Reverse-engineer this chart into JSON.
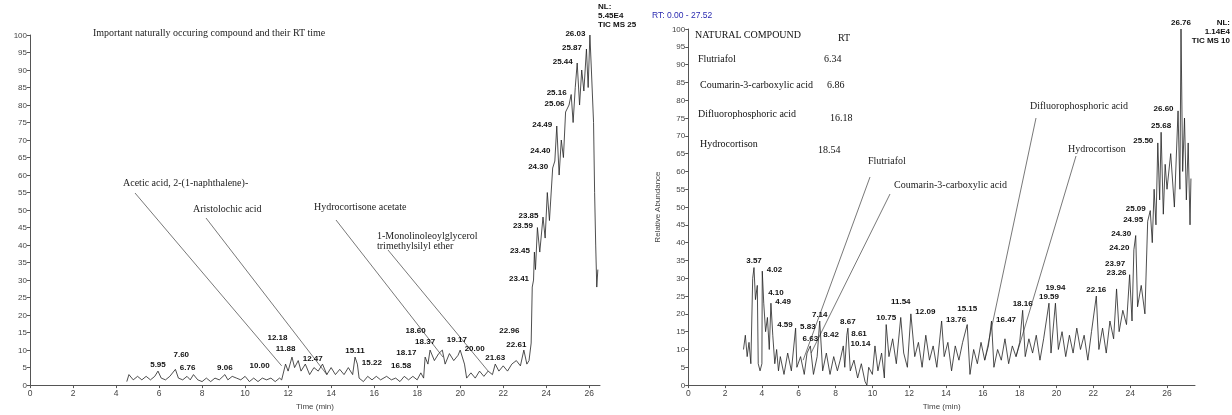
{
  "chart_data": [
    {
      "type": "line",
      "title": "Important naturally occuring compound and their RT time",
      "xlabel": "Time (min)",
      "xlim": [
        0,
        26.5
      ],
      "xticks": [
        0,
        2,
        4,
        6,
        8,
        10,
        12,
        14,
        16,
        18,
        20,
        22,
        24,
        26
      ],
      "ylim": [
        0,
        100
      ],
      "yticks": [
        0,
        5,
        10,
        15,
        20,
        25,
        30,
        35,
        40,
        45,
        50,
        55,
        60,
        65,
        70,
        75,
        80,
        85,
        90,
        95,
        100
      ],
      "series": [
        {
          "color": "#222222",
          "x": [
            4.5,
            4.6,
            4.8,
            5.0,
            5.2,
            5.4,
            5.6,
            5.8,
            5.95,
            6.1,
            6.3,
            6.5,
            6.76,
            6.9,
            7.1,
            7.3,
            7.45,
            7.6,
            7.8,
            8.0,
            8.2,
            8.4,
            8.6,
            8.8,
            9.06,
            9.2,
            9.4,
            9.6,
            9.8,
            10.0,
            10.2,
            10.4,
            10.6,
            10.8,
            11.0,
            11.2,
            11.4,
            11.6,
            11.7,
            11.88,
            12.0,
            12.18,
            12.3,
            12.47,
            12.6,
            12.8,
            13.0,
            13.2,
            13.4,
            13.6,
            13.8,
            14.0,
            14.2,
            14.4,
            14.6,
            14.8,
            15.0,
            15.11,
            15.22,
            15.3,
            15.5,
            15.7,
            15.9,
            16.1,
            16.3,
            16.58,
            16.8,
            17.0,
            17.2,
            17.4,
            17.6,
            17.8,
            18.0,
            18.17,
            18.3,
            18.37,
            18.5,
            18.6,
            18.8,
            19.0,
            19.17,
            19.3,
            19.5,
            19.7,
            19.9,
            20.0,
            20.2,
            20.3,
            20.5,
            20.7,
            20.9,
            21.1,
            21.3,
            21.5,
            21.63,
            21.8,
            22.0,
            22.2,
            22.4,
            22.61,
            22.8,
            22.96,
            23.1,
            23.2,
            23.3,
            23.35,
            23.41,
            23.45,
            23.5,
            23.59,
            23.7,
            23.85,
            23.95,
            24.05,
            24.15,
            24.3,
            24.4,
            24.49,
            24.6,
            24.7,
            24.8,
            24.9,
            25.06,
            25.16,
            25.25,
            25.35,
            25.44,
            25.55,
            25.65,
            25.75,
            25.87,
            25.95,
            26.03,
            26.1,
            26.2,
            26.25,
            26.3,
            26.35,
            26.4
          ],
          "values": [
            1,
            3,
            1.5,
            2.5,
            1.5,
            2.5,
            1.5,
            2.5,
            4,
            2,
            1.5,
            2.5,
            4.5,
            2,
            1.5,
            2.5,
            1.5,
            3,
            1.5,
            1,
            2,
            1,
            2,
            1.5,
            3,
            1.5,
            2.5,
            2,
            1.5,
            2.5,
            1,
            2,
            1,
            2,
            1.5,
            2,
            1,
            2,
            1.5,
            6,
            4,
            8,
            5,
            7,
            4,
            6,
            3,
            5,
            4,
            6,
            3,
            5,
            3,
            4.5,
            3,
            5,
            3,
            8,
            6,
            2,
            1,
            2.5,
            1.5,
            2.5,
            1.5,
            2.5,
            1.5,
            2,
            1,
            2.5,
            1.5,
            2.5,
            1.5,
            3.5,
            2,
            8,
            6,
            10,
            7,
            9,
            10,
            6,
            9,
            7,
            8.5,
            10,
            6,
            2,
            3.5,
            2,
            4,
            2.5,
            4,
            3,
            6,
            4,
            5.5,
            4,
            6,
            7,
            5.5,
            10,
            6,
            7,
            12,
            28,
            30,
            38,
            33,
            45,
            38,
            48,
            42,
            55,
            47,
            62,
            64,
            74,
            60,
            70,
            65,
            78,
            80,
            83,
            75,
            85,
            92,
            80,
            90,
            84,
            96,
            85,
            100,
            90,
            75,
            55,
            40,
            28,
            33
          ]
        }
      ],
      "annotations": [
        "NL:",
        "5.45E4",
        "TIC MS 25",
        {
          "text": "Acetic acid, 2-(1-naphthalene)-",
          "x": 11.7,
          "y": 5.5
        },
        {
          "text": "Aristolochic acid",
          "x": 13.8,
          "y": 3
        },
        {
          "text": "Hydrocortisone acetate",
          "x": 19.2,
          "y": 8
        },
        {
          "text": "1-Monolinoleoylglycerol trimethylsilyl ether",
          "x": 21.3,
          "y": 4
        },
        {
          "text": "5.95",
          "x": 5.95,
          "y": 4
        },
        {
          "text": "6.76",
          "x": 6.76,
          "y": 4.5
        },
        {
          "text": "7.60",
          "x": 7.6,
          "y": 3
        },
        {
          "text": "9.06",
          "x": 9.06,
          "y": 3
        },
        {
          "text": "10.00",
          "x": 10.0,
          "y": 2.5
        },
        {
          "text": "11.88",
          "x": 11.88,
          "y": 6
        },
        {
          "text": "12.18",
          "x": 12.18,
          "y": 8
        },
        {
          "text": "12.47",
          "x": 12.47,
          "y": 7
        },
        {
          "text": "15.11",
          "x": 15.11,
          "y": 8
        },
        {
          "text": "15.22",
          "x": 15.22,
          "y": 6
        },
        {
          "text": "16.58",
          "x": 16.58,
          "y": 2.5
        },
        {
          "text": "18.17",
          "x": 18.17,
          "y": 3.5
        },
        {
          "text": "18.37",
          "x": 18.37,
          "y": 8
        },
        {
          "text": "18.60",
          "x": 18.6,
          "y": 10
        },
        {
          "text": "19.17",
          "x": 19.17,
          "y": 10
        },
        {
          "text": "20.00",
          "x": 20.0,
          "y": 10
        },
        {
          "text": "21.63",
          "x": 21.63,
          "y": 6
        },
        {
          "text": "22.61",
          "x": 22.61,
          "y": 7
        },
        {
          "text": "22.96",
          "x": 22.96,
          "y": 10
        },
        {
          "text": "23.41",
          "x": 23.41,
          "y": 30
        },
        {
          "text": "23.45",
          "x": 23.45,
          "y": 38
        },
        {
          "text": "23.59",
          "x": 23.59,
          "y": 45
        },
        {
          "text": "23.85",
          "x": 23.85,
          "y": 48
        },
        {
          "text": "24.30",
          "x": 24.3,
          "y": 62
        },
        {
          "text": "24.40",
          "x": 24.4,
          "y": 64
        },
        {
          "text": "24.49",
          "x": 24.49,
          "y": 74
        },
        {
          "text": "25.06",
          "x": 25.06,
          "y": 80
        },
        {
          "text": "25.16",
          "x": 25.16,
          "y": 83
        },
        {
          "text": "25.44",
          "x": 25.44,
          "y": 92
        },
        {
          "text": "25.87",
          "x": 25.87,
          "y": 96
        },
        {
          "text": "26.03",
          "x": 26.03,
          "y": 100
        }
      ]
    },
    {
      "type": "line",
      "xlabel": "Time (min)",
      "ylabel": "Relative Abundance",
      "xlim": [
        0,
        27.52
      ],
      "xticks": [
        0,
        2,
        4,
        6,
        8,
        10,
        12,
        14,
        16,
        18,
        20,
        22,
        24,
        26
      ],
      "ylim": [
        0,
        100
      ],
      "yticks": [
        0,
        5,
        10,
        15,
        20,
        25,
        30,
        35,
        40,
        45,
        50,
        55,
        60,
        65,
        70,
        75,
        80,
        85,
        90,
        95,
        100
      ],
      "series": [
        {
          "color": "#222222",
          "x": [
            3.0,
            3.1,
            3.2,
            3.3,
            3.4,
            3.5,
            3.57,
            3.65,
            3.75,
            3.8,
            3.9,
            4.0,
            4.02,
            4.1,
            4.2,
            4.3,
            4.4,
            4.49,
            4.59,
            4.7,
            4.8,
            4.9,
            5.0,
            5.2,
            5.4,
            5.6,
            5.83,
            5.9,
            6.1,
            6.3,
            6.45,
            6.63,
            6.8,
            7.0,
            7.14,
            7.3,
            7.5,
            7.7,
            7.9,
            8.1,
            8.25,
            8.42,
            8.5,
            8.61,
            8.67,
            8.8,
            9.0,
            9.2,
            9.4,
            9.6,
            9.7,
            9.8,
            10.0,
            10.14,
            10.3,
            10.5,
            10.65,
            10.75,
            10.9,
            11.1,
            11.3,
            11.54,
            11.7,
            11.9,
            12.09,
            12.3,
            12.5,
            12.7,
            12.9,
            13.1,
            13.3,
            13.5,
            13.76,
            13.9,
            14.1,
            14.3,
            14.5,
            14.7,
            14.9,
            15.15,
            15.3,
            15.5,
            15.7,
            15.9,
            16.1,
            16.3,
            16.47,
            16.6,
            16.8,
            17.0,
            17.2,
            17.4,
            17.6,
            17.8,
            18.0,
            18.16,
            18.3,
            18.5,
            18.7,
            18.9,
            19.1,
            19.3,
            19.59,
            19.7,
            19.94,
            20.1,
            20.3,
            20.5,
            20.7,
            20.9,
            21.1,
            21.3,
            21.5,
            21.7,
            21.9,
            22.16,
            22.3,
            22.5,
            22.7,
            22.9,
            23.1,
            23.26,
            23.4,
            23.6,
            23.8,
            23.97,
            24.1,
            24.2,
            24.3,
            24.4,
            24.6,
            24.8,
            24.95,
            25.09,
            25.2,
            25.3,
            25.4,
            25.5,
            25.6,
            25.68,
            25.8,
            25.9,
            26.0,
            26.2,
            26.4,
            26.6,
            26.7,
            26.76,
            26.85,
            26.95,
            27.05,
            27.15,
            27.25,
            27.3
          ],
          "values": [
            10,
            14,
            8,
            12,
            6,
            30,
            33,
            24,
            28,
            6,
            4,
            6,
            32,
            23,
            15,
            19,
            10,
            23,
            14,
            6,
            10,
            4,
            8,
            3,
            9,
            4,
            16,
            5,
            8,
            3,
            9,
            11,
            3,
            8,
            18,
            4,
            9,
            3,
            8,
            4,
            7,
            11,
            5,
            14,
            16,
            4,
            7,
            2,
            6,
            1,
            0,
            5,
            3,
            11,
            4,
            9,
            2,
            17,
            8,
            13,
            6,
            19,
            9,
            5,
            20,
            8,
            12,
            5,
            14,
            7,
            11,
            5,
            18,
            8,
            12,
            4,
            11,
            7,
            12,
            17,
            3,
            10,
            6,
            12,
            7,
            11,
            18,
            5,
            10,
            7,
            13,
            6,
            11,
            8,
            12,
            21,
            8,
            13,
            9,
            14,
            7,
            13,
            23,
            9,
            23,
            10,
            15,
            8,
            14,
            9,
            16,
            10,
            14,
            7,
            15,
            25,
            10,
            16,
            9,
            18,
            13,
            27,
            15,
            21,
            17,
            31,
            18,
            38,
            42,
            22,
            28,
            20,
            46,
            49,
            40,
            55,
            45,
            68,
            52,
            71,
            48,
            62,
            55,
            65,
            50,
            77,
            55,
            100,
            60,
            75,
            52,
            68,
            45,
            58
          ]
        }
      ],
      "annotations": [
        "RT: 0.00 - 27.52",
        "NL:",
        "1.14E4",
        "TIC MS 10",
        "NATURAL COMPOUND",
        "RT",
        "Flutriafol",
        "6.34",
        "Coumarin-3-carboxylic acid",
        "6.86",
        "Difluorophosphoric acid",
        "16.18",
        "Hydrocortison",
        "18.54",
        {
          "text": "Flutriafol",
          "x": 6.24,
          "y": 7
        },
        {
          "text": "Coumarin-3-carboxylic acid",
          "x": 6.67,
          "y": 9
        },
        {
          "text": "Difluorophosphoric acid",
          "x": 16.1,
          "y": 7
        },
        {
          "text": "Hydrocortison",
          "x": 17.8,
          "y": 8
        },
        {
          "text": "3.57",
          "x": 3.57,
          "y": 33
        },
        {
          "text": "4.02",
          "x": 4.02,
          "y": 32
        },
        {
          "text": "4.10",
          "x": 4.1,
          "y": 23
        },
        {
          "text": "4.49",
          "x": 4.49,
          "y": 23
        },
        {
          "text": "4.59",
          "x": 4.59,
          "y": 14
        },
        {
          "text": "5.83",
          "x": 5.83,
          "y": 16
        },
        {
          "text": "6.63",
          "x": 6.63,
          "y": 11
        },
        {
          "text": "7.14",
          "x": 7.14,
          "y": 18
        },
        {
          "text": "8.42",
          "x": 8.42,
          "y": 11
        },
        {
          "text": "8.61",
          "x": 8.61,
          "y": 14
        },
        {
          "text": "8.67",
          "x": 8.67,
          "y": 16
        },
        {
          "text": "10.14",
          "x": 10.14,
          "y": 11
        },
        {
          "text": "10.75",
          "x": 10.75,
          "y": 17
        },
        {
          "text": "11.54",
          "x": 11.54,
          "y": 19
        },
        {
          "text": "12.09",
          "x": 12.09,
          "y": 20
        },
        {
          "text": "13.76",
          "x": 13.76,
          "y": 18
        },
        {
          "text": "15.15",
          "x": 15.15,
          "y": 17
        },
        {
          "text": "16.47",
          "x": 16.47,
          "y": 18
        },
        {
          "text": "18.16",
          "x": 18.16,
          "y": 21
        },
        {
          "text": "19.59",
          "x": 19.59,
          "y": 23
        },
        {
          "text": "19.94",
          "x": 19.94,
          "y": 23
        },
        {
          "text": "22.16",
          "x": 22.16,
          "y": 25
        },
        {
          "text": "23.26",
          "x": 23.26,
          "y": 27
        },
        {
          "text": "23.97",
          "x": 23.97,
          "y": 31
        },
        {
          "text": "24.20",
          "x": 24.2,
          "y": 38
        },
        {
          "text": "24.30",
          "x": 24.3,
          "y": 42
        },
        {
          "text": "24.95",
          "x": 24.95,
          "y": 46
        },
        {
          "text": "25.09",
          "x": 25.09,
          "y": 49
        },
        {
          "text": "25.50",
          "x": 25.5,
          "y": 68
        },
        {
          "text": "25.68",
          "x": 25.68,
          "y": 71
        },
        {
          "text": "26.60",
          "x": 26.6,
          "y": 77
        },
        {
          "text": "26.76",
          "x": 26.76,
          "y": 100
        }
      ]
    }
  ]
}
